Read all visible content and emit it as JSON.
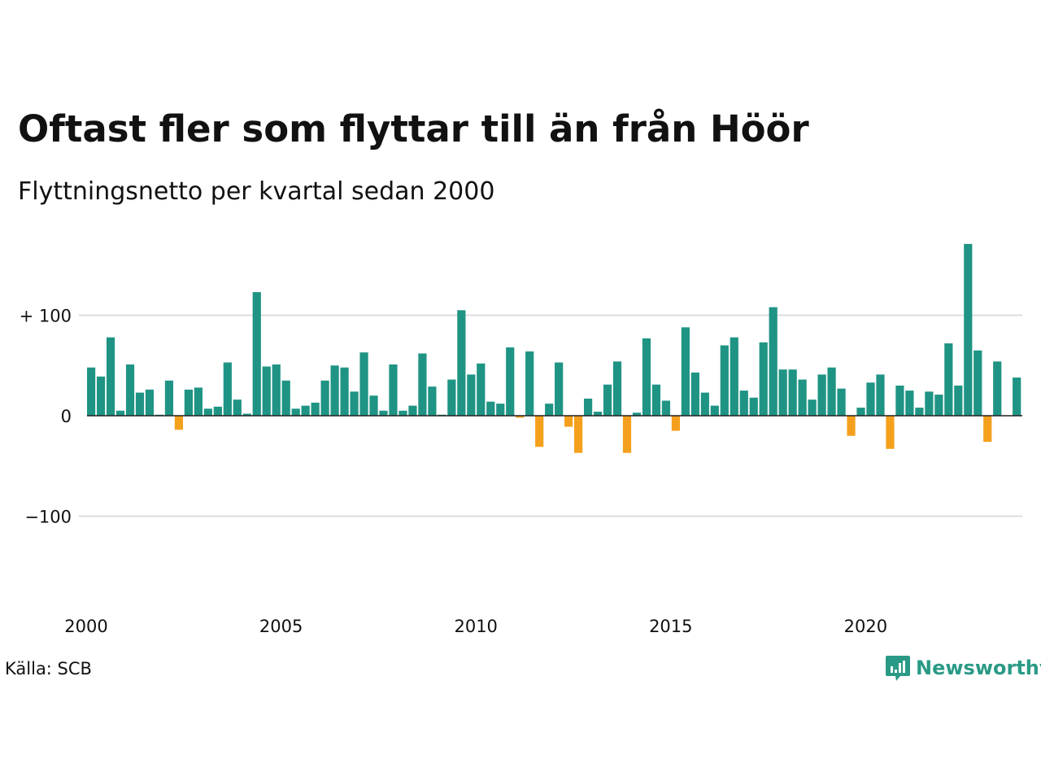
{
  "header": {
    "title": "Oftast fler som flyttar till än från Höör",
    "subtitle": "Flyttningsnetto per kvartal sedan 2000"
  },
  "footer": {
    "source": "Källa: SCB",
    "brand": "Newsworthy"
  },
  "colors": {
    "positive": "#1f9485",
    "negative": "#f5a01d",
    "grid": "#dddddd",
    "zero_line": "#222222",
    "brand": "#2a9a86"
  },
  "icons": {
    "brand_logo": "newsworthy-chart-bubble-icon"
  },
  "chart_data": {
    "type": "bar",
    "title": "Oftast fler som flyttar till än från Höör",
    "subtitle": "Flyttningsnetto per kvartal sedan 2000",
    "xlabel": "",
    "ylabel": "",
    "x_ticks": [
      "2000",
      "2005",
      "2010",
      "2015",
      "2020"
    ],
    "y_ticks": [
      {
        "value": 100,
        "label": "+ 100"
      },
      {
        "value": 0,
        "label": "0"
      },
      {
        "value": -100,
        "label": "−100"
      }
    ],
    "ylim": [
      -180,
      175
    ],
    "grid": true,
    "start_year": 2000,
    "values": [
      48,
      39,
      78,
      5,
      51,
      23,
      26,
      1,
      35,
      -14,
      26,
      28,
      7,
      9,
      53,
      16,
      2,
      123,
      49,
      51,
      35,
      7,
      10,
      13,
      35,
      50,
      48,
      24,
      63,
      20,
      5,
      51,
      5,
      10,
      62,
      29,
      1,
      36,
      105,
      41,
      52,
      14,
      12,
      68,
      -2,
      64,
      -31,
      12,
      53,
      -11,
      -37,
      17,
      4,
      31,
      54,
      -37,
      3,
      77,
      31,
      15,
      -15,
      88,
      43,
      23,
      10,
      70,
      78,
      25,
      18,
      73,
      108,
      46,
      46,
      36,
      16,
      41,
      48,
      27,
      -20,
      8,
      33,
      41,
      -33,
      30,
      25,
      8,
      24,
      21,
      72,
      30,
      171,
      65,
      -26,
      54,
      0,
      38
    ]
  }
}
